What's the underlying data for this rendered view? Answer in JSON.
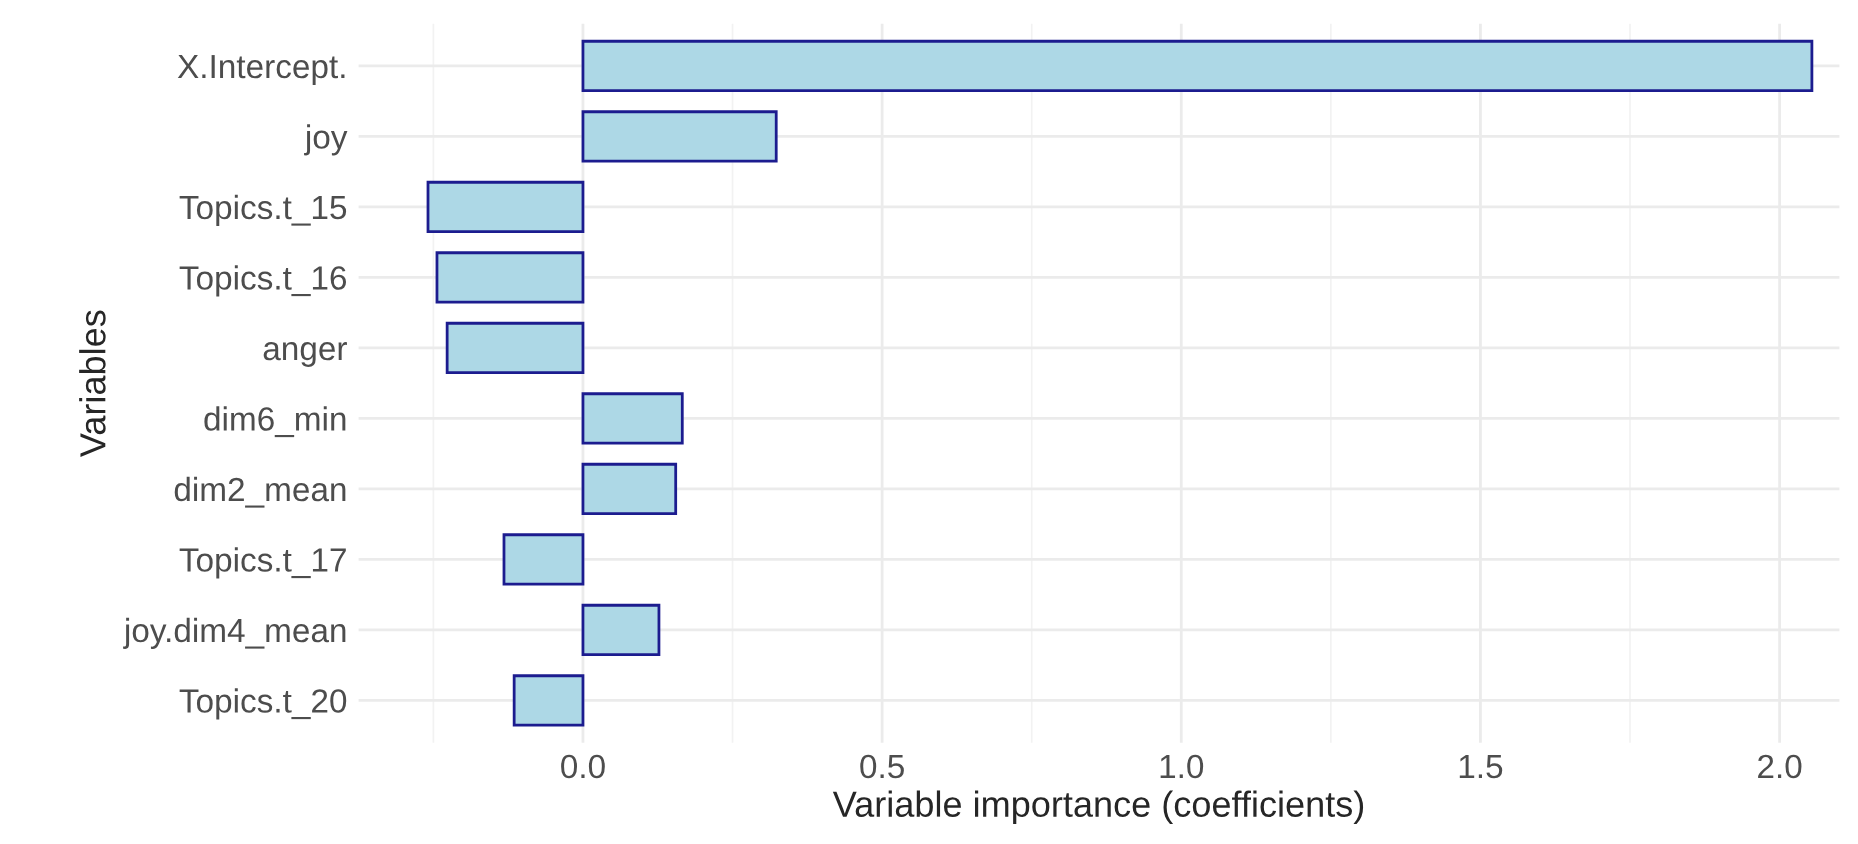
{
  "chart_data": {
    "type": "bar",
    "orientation": "horizontal",
    "xlabel": "Variable importance (coefficients)",
    "ylabel": "Variables",
    "categories": [
      "X.Intercept.",
      "joy",
      "Topics.t_15",
      "Topics.t_16",
      "anger",
      "dim6_min",
      "dim2_mean",
      "Topics.t_17",
      "joy.dim4_mean",
      "Topics.t_20"
    ],
    "series": [
      {
        "color": "#add8e6",
        "values": [
          2.054,
          0.323,
          -0.259,
          -0.244,
          -0.227,
          0.166,
          0.155,
          -0.132,
          0.127,
          -0.115
        ]
      }
    ],
    "xlim": [
      -0.375,
      2.1
    ],
    "xticks": [
      {
        "value": 0,
        "label": "0.0"
      },
      {
        "value": 0.5,
        "label": "0.5"
      },
      {
        "value": 1,
        "label": "1.0"
      },
      {
        "value": 1.5,
        "label": "1.5"
      },
      {
        "value": 2,
        "label": "2.0"
      }
    ],
    "grid": true,
    "legend": false
  }
}
